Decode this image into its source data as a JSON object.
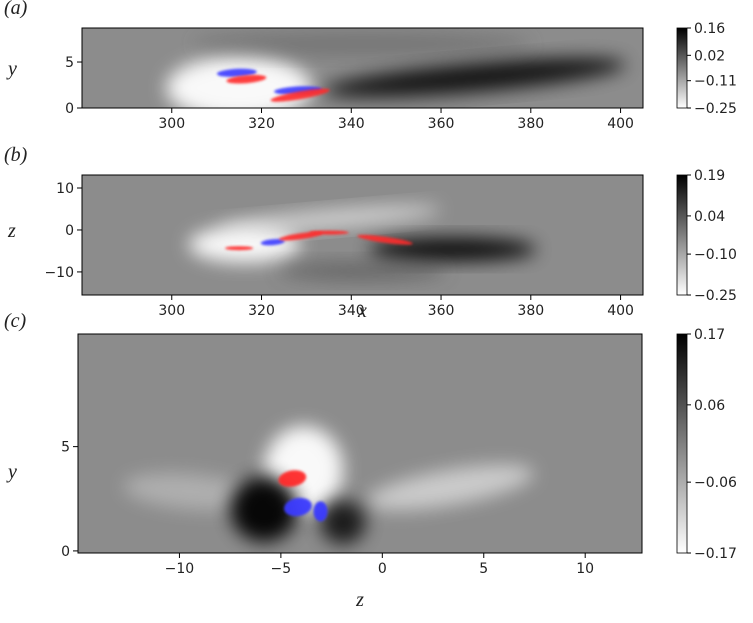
{
  "chart_data": [
    {
      "type": "heatmap",
      "panel_label": "(a)",
      "ylabel": "y",
      "xlim": [
        280,
        405
      ],
      "xticks": [
        300,
        320,
        340,
        360,
        380,
        400
      ],
      "ylim": [
        0,
        8.7
      ],
      "yticks": [
        0,
        5
      ],
      "colorbar": {
        "clim": [
          -0.25,
          0.16
        ],
        "ticks": [
          0.16,
          0.02,
          {
            "value": -0.11,
            "label": "−0.11"
          },
          {
            "value": -0.25,
            "label": "−0.25"
          }
        ]
      }
    },
    {
      "type": "heatmap",
      "panel_label": "(b)",
      "ylabel": "z",
      "xlabel": "x",
      "xlim": [
        280,
        405
      ],
      "xticks": [
        300,
        320,
        340,
        360,
        380,
        400
      ],
      "ylim": [
        -15.5,
        13.1
      ],
      "yticks": [
        10,
        0,
        {
          "value": -10,
          "label": "−10"
        }
      ],
      "colorbar": {
        "clim": [
          -0.25,
          0.19
        ],
        "ticks": [
          0.19,
          0.04,
          {
            "value": -0.1,
            "label": "−0.10"
          },
          {
            "value": -0.25,
            "label": "−0.25"
          }
        ]
      }
    },
    {
      "type": "heatmap",
      "panel_label": "(c)",
      "ylabel": "y",
      "xlabel": "z",
      "xlim": [
        -15,
        12.8
      ],
      "xticks": [
        {
          "value": -10,
          "label": "−10"
        },
        {
          "value": -5,
          "label": "−5"
        },
        0,
        5,
        10
      ],
      "ylim": [
        -0.1,
        10.4
      ],
      "yticks": [
        0,
        5
      ],
      "colorbar": {
        "clim": [
          -0.17,
          0.17
        ],
        "ticks": [
          0.17,
          0.06,
          {
            "value": -0.06,
            "label": "−0.06"
          },
          {
            "value": -0.17,
            "label": "−0.17"
          }
        ]
      }
    }
  ]
}
